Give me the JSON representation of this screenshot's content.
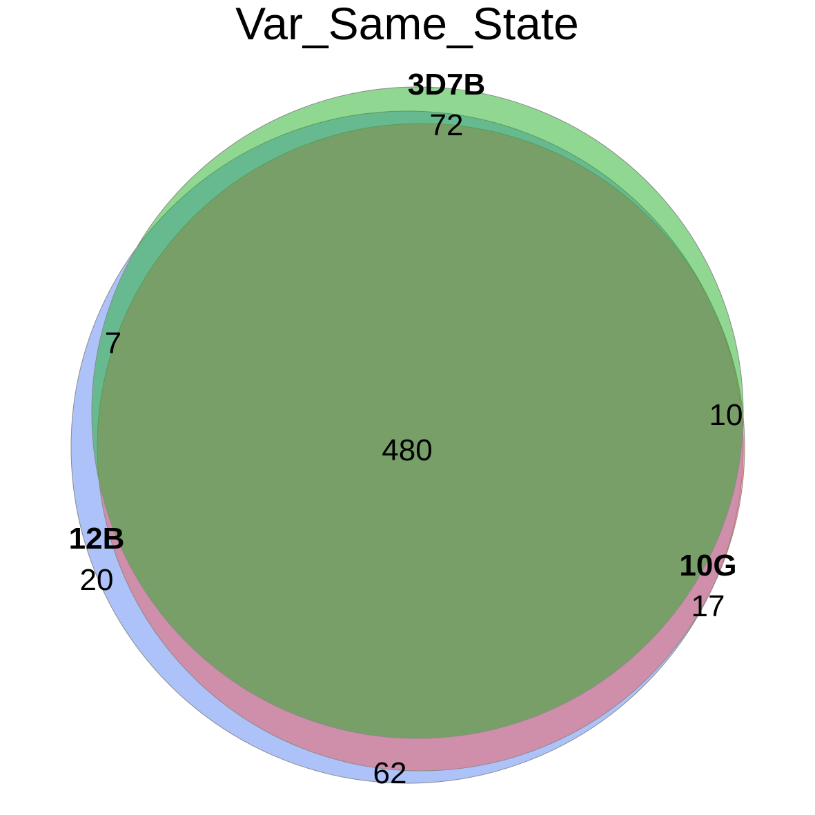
{
  "title": "Var_Same_State",
  "sets": [
    {
      "name": "3D7B",
      "color": "#22b026"
    },
    {
      "name": "12B",
      "color": "#5b86f2"
    },
    {
      "name": "10G",
      "color": "#f25a5a"
    }
  ],
  "counts": {
    "only_3D7B": "72",
    "only_12B": "20",
    "only_10G": "17",
    "3D7B_and_12B": "7",
    "3D7B_and_10G": "10",
    "12B_and_10G": "62",
    "all_three": "480"
  },
  "colors": {
    "green": "#22b026",
    "blue": "#5b86f2",
    "red": "#f25a5a",
    "stroke": "#8a8a8a"
  }
}
